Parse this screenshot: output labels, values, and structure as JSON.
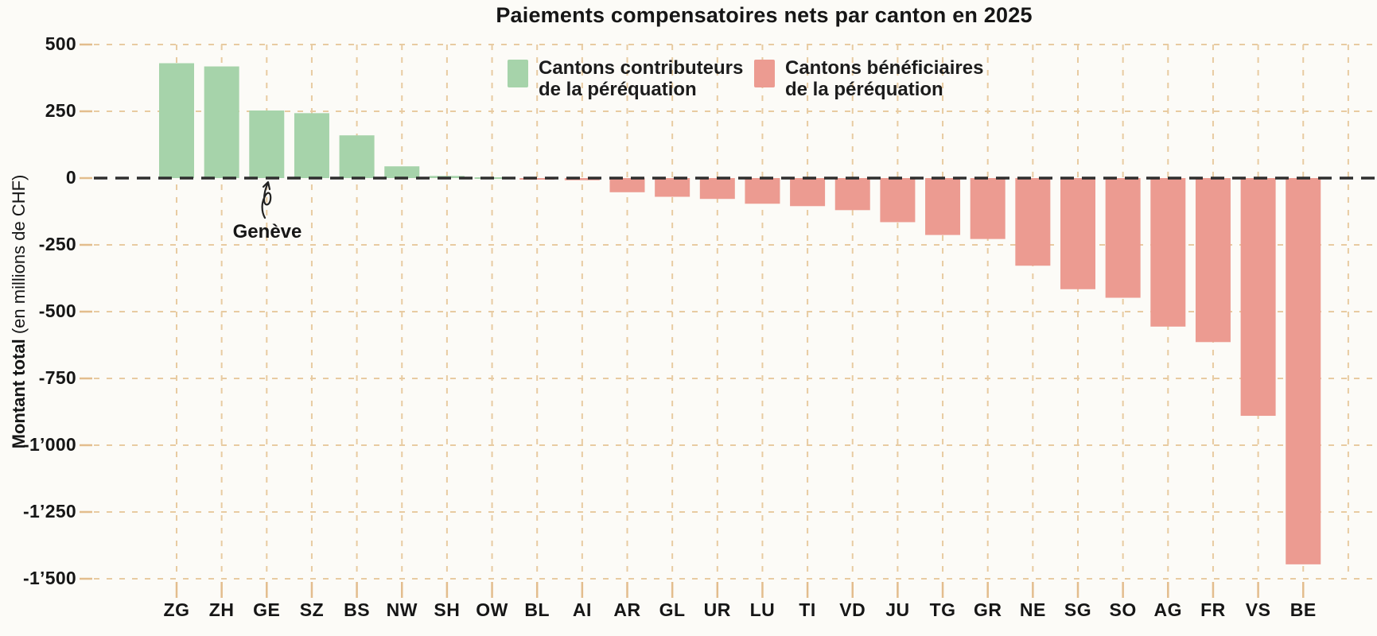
{
  "title": "Paiements compensatoires nets par canton en 2025",
  "y_axis": {
    "label_bold": "Montant total",
    "label_rest": " (en millions de CHF)",
    "ticks": [
      "500",
      "250",
      "0",
      "-250",
      "-500",
      "-750",
      "-1’000",
      "-1’250",
      "-1’500"
    ]
  },
  "legend": {
    "items": [
      {
        "line1": "Cantons contributeurs",
        "line2": "de la péréquation",
        "color": "#a6d3aa"
      },
      {
        "line1": "Cantons bénéficiaires",
        "line2": "de la péréquation",
        "color": "#ec9b91"
      }
    ]
  },
  "annotation": {
    "text": "Genève",
    "target": "GE"
  },
  "colors": {
    "positive": "#a6d3aa",
    "negative": "#ec9b91",
    "gridline": "#e8cba1",
    "zero_line": "#2e2e2e",
    "background": "#fcfbf7",
    "text": "#161616"
  },
  "chart_data": {
    "type": "bar",
    "title": "Paiements compensatoires nets par canton en 2025",
    "xlabel": "",
    "ylabel": "Montant total (en millions de CHF)",
    "ylim": [
      -1500,
      500
    ],
    "ytick_step": 250,
    "grid": "dashed, both axes",
    "legend_position": "top-center",
    "categories": [
      "ZG",
      "ZH",
      "GE",
      "SZ",
      "BS",
      "NW",
      "SH",
      "OW",
      "BL",
      "AI",
      "AR",
      "GL",
      "UR",
      "LU",
      "TI",
      "VD",
      "JU",
      "TG",
      "GR",
      "NE",
      "SG",
      "SO",
      "AG",
      "FR",
      "VS",
      "BE"
    ],
    "values": [
      430,
      418,
      253,
      243,
      160,
      44,
      8,
      3,
      -3,
      -8,
      -53,
      -70,
      -78,
      -96,
      -105,
      -120,
      -165,
      -213,
      -228,
      -328,
      -416,
      -448,
      -556,
      -614,
      -890,
      -1446
    ],
    "series": [
      {
        "name": "Cantons contributeurs de la péréquation",
        "color": "#a6d3aa",
        "rule": "values >= 0"
      },
      {
        "name": "Cantons bénéficiaires de la péréquation",
        "color": "#ec9b91",
        "rule": "values < 0"
      }
    ]
  }
}
